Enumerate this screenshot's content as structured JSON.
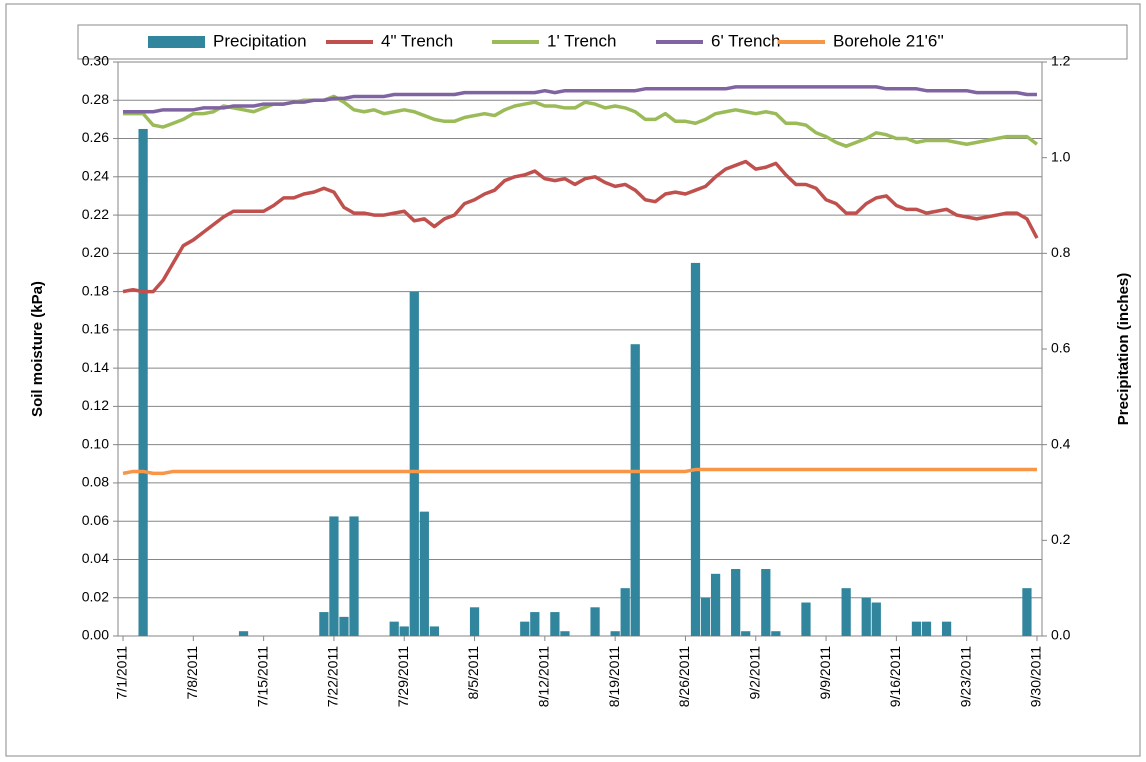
{
  "chart_data": {
    "type": "combo",
    "x": [
      "7/1/2011",
      "7/2/2011",
      "7/3/2011",
      "7/4/2011",
      "7/5/2011",
      "7/6/2011",
      "7/7/2011",
      "7/8/2011",
      "7/9/2011",
      "7/10/2011",
      "7/11/2011",
      "7/12/2011",
      "7/13/2011",
      "7/14/2011",
      "7/15/2011",
      "7/16/2011",
      "7/17/2011",
      "7/18/2011",
      "7/19/2011",
      "7/20/2011",
      "7/21/2011",
      "7/22/2011",
      "7/23/2011",
      "7/24/2011",
      "7/25/2011",
      "7/26/2011",
      "7/27/2011",
      "7/28/2011",
      "7/29/2011",
      "7/30/2011",
      "7/31/2011",
      "8/1/2011",
      "8/2/2011",
      "8/3/2011",
      "8/4/2011",
      "8/5/2011",
      "8/6/2011",
      "8/7/2011",
      "8/8/2011",
      "8/9/2011",
      "8/10/2011",
      "8/11/2011",
      "8/12/2011",
      "8/13/2011",
      "8/14/2011",
      "8/15/2011",
      "8/16/2011",
      "8/17/2011",
      "8/18/2011",
      "8/19/2011",
      "8/20/2011",
      "8/21/2011",
      "8/22/2011",
      "8/23/2011",
      "8/24/2011",
      "8/25/2011",
      "8/26/2011",
      "8/27/2011",
      "8/28/2011",
      "8/29/2011",
      "8/30/2011",
      "8/31/2011",
      "9/1/2011",
      "9/2/2011",
      "9/3/2011",
      "9/4/2011",
      "9/5/2011",
      "9/6/2011",
      "9/7/2011",
      "9/8/2011",
      "9/9/2011",
      "9/10/2011",
      "9/11/2011",
      "9/12/2011",
      "9/13/2011",
      "9/14/2011",
      "9/15/2011",
      "9/16/2011",
      "9/17/2011",
      "9/18/2011",
      "9/19/2011",
      "9/20/2011",
      "9/21/2011",
      "9/22/2011",
      "9/23/2011",
      "9/24/2011",
      "9/25/2011",
      "9/26/2011",
      "9/27/2011",
      "9/28/2011",
      "9/29/2011",
      "9/30/2011"
    ],
    "xticks": [
      "7/1/2011",
      "7/8/2011",
      "7/15/2011",
      "7/22/2011",
      "7/29/2011",
      "8/5/2011",
      "8/12/2011",
      "8/19/2011",
      "8/26/2011",
      "9/2/2011",
      "9/9/2011",
      "9/16/2011",
      "9/23/2011",
      "9/30/2011"
    ],
    "ylabel": "Soil moisture (kPa)",
    "y2label": "Precipitation (inches)",
    "ylim": [
      0,
      0.3
    ],
    "yticks": [
      {
        "value": 0,
        "label": "0.00"
      },
      0.02,
      0.04,
      0.06,
      0.08,
      {
        "value": 0.1,
        "label": "0.10"
      },
      0.12,
      0.14,
      0.16,
      0.18,
      {
        "value": 0.2,
        "label": "0.20"
      },
      0.22,
      0.24,
      0.26,
      0.28,
      {
        "value": 0.3,
        "label": "0.30"
      }
    ],
    "y2lim": [
      0,
      1.2
    ],
    "y2ticks": [
      {
        "value": 0,
        "label": "0.0"
      },
      0.2,
      0.4,
      0.6,
      0.8,
      {
        "value": 1,
        "label": "1.0"
      },
      1.2
    ],
    "grid": true,
    "legend": "top",
    "series": [
      {
        "name": "Precipitation",
        "type": "bar",
        "axis": "y2",
        "color": "#31859c",
        "values": [
          0,
          0,
          1.06,
          0,
          0,
          0,
          0,
          0,
          0,
          0,
          0,
          0,
          0.01,
          0,
          0,
          0,
          0,
          0,
          0,
          0,
          0.05,
          0.25,
          0.04,
          0.25,
          0,
          0,
          0,
          0.03,
          0.02,
          0.72,
          0.26,
          0.02,
          0,
          0,
          0,
          0.06,
          0,
          0,
          0,
          0,
          0.03,
          0.05,
          0,
          0.05,
          0.01,
          0,
          0,
          0.06,
          0,
          0.01,
          0.1,
          0.61,
          0,
          0,
          0,
          0,
          0,
          0.78,
          0.08,
          0.13,
          0,
          0.14,
          0.01,
          0,
          0.14,
          0.01,
          0,
          0,
          0.07,
          0,
          0,
          0,
          0.1,
          0,
          0.08,
          0.07,
          0,
          0,
          0,
          0.03,
          0.03,
          0,
          0.03,
          0,
          0,
          0,
          0,
          0,
          0,
          0,
          0.1,
          0
        ]
      },
      {
        "name": "4\" Trench",
        "type": "line",
        "color": "#c0504d",
        "values": [
          0.18,
          0.181,
          0.18,
          0.18,
          0.186,
          0.195,
          0.204,
          0.207,
          0.211,
          0.215,
          0.219,
          0.222,
          0.222,
          0.222,
          0.222,
          0.225,
          0.229,
          0.229,
          0.231,
          0.232,
          0.234,
          0.232,
          0.224,
          0.221,
          0.221,
          0.22,
          0.22,
          0.221,
          0.222,
          0.217,
          0.218,
          0.214,
          0.218,
          0.22,
          0.226,
          0.228,
          0.231,
          0.233,
          0.238,
          0.24,
          0.241,
          0.243,
          0.239,
          0.238,
          0.239,
          0.236,
          0.239,
          0.24,
          0.237,
          0.235,
          0.236,
          0.233,
          0.228,
          0.227,
          0.231,
          0.232,
          0.231,
          0.233,
          0.235,
          0.24,
          0.244,
          0.246,
          0.248,
          0.244,
          0.245,
          0.247,
          0.241,
          0.236,
          0.236,
          0.234,
          0.228,
          0.226,
          0.221,
          0.221,
          0.226,
          0.229,
          0.23,
          0.225,
          0.223,
          0.223,
          0.221,
          0.222,
          0.223,
          0.22,
          0.219,
          0.218,
          0.219,
          0.22,
          0.221,
          0.221,
          0.218,
          0.208
        ]
      },
      {
        "name": "1' Trench",
        "type": "line",
        "color": "#9bbb59",
        "values": [
          0.273,
          0.273,
          0.273,
          0.267,
          0.266,
          0.268,
          0.27,
          0.273,
          0.273,
          0.274,
          0.277,
          0.276,
          0.275,
          0.274,
          0.276,
          0.278,
          0.278,
          0.279,
          0.28,
          0.28,
          0.28,
          0.282,
          0.279,
          0.275,
          0.274,
          0.275,
          0.273,
          0.274,
          0.275,
          0.274,
          0.272,
          0.27,
          0.269,
          0.269,
          0.271,
          0.272,
          0.273,
          0.272,
          0.275,
          0.277,
          0.278,
          0.279,
          0.277,
          0.277,
          0.276,
          0.276,
          0.279,
          0.278,
          0.276,
          0.277,
          0.276,
          0.274,
          0.27,
          0.27,
          0.273,
          0.269,
          0.269,
          0.268,
          0.27,
          0.273,
          0.274,
          0.275,
          0.274,
          0.273,
          0.274,
          0.273,
          0.268,
          0.268,
          0.267,
          0.263,
          0.261,
          0.258,
          0.256,
          0.258,
          0.26,
          0.263,
          0.262,
          0.26,
          0.26,
          0.258,
          0.259,
          0.259,
          0.259,
          0.258,
          0.257,
          0.258,
          0.259,
          0.26,
          0.261,
          0.261,
          0.261,
          0.257
        ]
      },
      {
        "name": "6' Trench",
        "type": "line",
        "color": "#8064a2",
        "values": [
          0.274,
          0.274,
          0.274,
          0.274,
          0.275,
          0.275,
          0.275,
          0.275,
          0.276,
          0.276,
          0.276,
          0.277,
          0.277,
          0.277,
          0.278,
          0.278,
          0.278,
          0.279,
          0.279,
          0.28,
          0.28,
          0.281,
          0.281,
          0.282,
          0.282,
          0.282,
          0.282,
          0.283,
          0.283,
          0.283,
          0.283,
          0.283,
          0.283,
          0.283,
          0.284,
          0.284,
          0.284,
          0.284,
          0.284,
          0.284,
          0.284,
          0.284,
          0.285,
          0.284,
          0.285,
          0.285,
          0.285,
          0.285,
          0.285,
          0.285,
          0.285,
          0.285,
          0.286,
          0.286,
          0.286,
          0.286,
          0.286,
          0.286,
          0.286,
          0.286,
          0.286,
          0.287,
          0.287,
          0.287,
          0.287,
          0.287,
          0.287,
          0.287,
          0.287,
          0.287,
          0.287,
          0.287,
          0.287,
          0.287,
          0.287,
          0.287,
          0.286,
          0.286,
          0.286,
          0.286,
          0.285,
          0.285,
          0.285,
          0.285,
          0.285,
          0.284,
          0.284,
          0.284,
          0.284,
          0.284,
          0.283,
          0.283
        ]
      },
      {
        "name": "Borehole 21'6''",
        "type": "line",
        "color": "#f79646",
        "values": [
          0.085,
          0.086,
          0.086,
          0.085,
          0.085,
          0.086,
          0.086,
          0.086,
          0.086,
          0.086,
          0.086,
          0.086,
          0.086,
          0.086,
          0.086,
          0.086,
          0.086,
          0.086,
          0.086,
          0.086,
          0.086,
          0.086,
          0.086,
          0.086,
          0.086,
          0.086,
          0.086,
          0.086,
          0.086,
          0.086,
          0.086,
          0.086,
          0.086,
          0.086,
          0.086,
          0.086,
          0.086,
          0.086,
          0.086,
          0.086,
          0.086,
          0.086,
          0.086,
          0.086,
          0.086,
          0.086,
          0.086,
          0.086,
          0.086,
          0.086,
          0.086,
          0.086,
          0.086,
          0.086,
          0.086,
          0.086,
          0.086,
          0.087,
          0.087,
          0.087,
          0.087,
          0.087,
          0.087,
          0.087,
          0.087,
          0.087,
          0.087,
          0.087,
          0.087,
          0.087,
          0.087,
          0.087,
          0.087,
          0.087,
          0.087,
          0.087,
          0.087,
          0.087,
          0.087,
          0.087,
          0.087,
          0.087,
          0.087,
          0.087,
          0.087,
          0.087,
          0.087,
          0.087,
          0.087,
          0.087,
          0.087,
          0.087
        ]
      }
    ]
  }
}
